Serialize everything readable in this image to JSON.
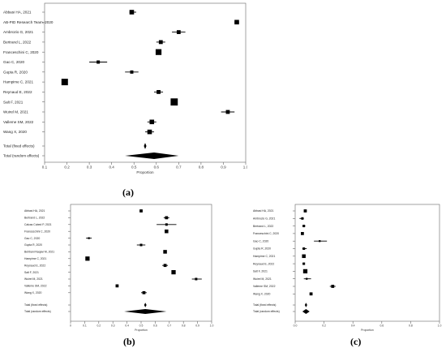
{
  "figure": {
    "panel_letters": [
      "(a)",
      "(b)",
      "(c)"
    ]
  },
  "chart_data": [
    {
      "type": "forest",
      "panel": "(a)",
      "xlabel": "Proportion",
      "xlim": [
        0.1,
        1.0
      ],
      "xticks": [
        "0.1",
        "0.2",
        "0.3",
        "0.4",
        "0.5",
        "0.6",
        "0.7",
        "0.8",
        "0.9",
        "1.0"
      ],
      "studies": [
        {
          "label": "Abbasi HA, 2021",
          "est": 0.49,
          "lo": 0.48,
          "hi": 0.51,
          "size": 7
        },
        {
          "label": "AB-PID Research Team, 2020",
          "est": 0.96,
          "lo": 0.95,
          "hi": 0.97,
          "size": 7
        },
        {
          "label": "Ambrozio G, 2021",
          "est": 0.7,
          "lo": 0.67,
          "hi": 0.73,
          "size": 6
        },
        {
          "label": "Bertrand L, 2022",
          "est": 0.62,
          "lo": 0.6,
          "hi": 0.64,
          "size": 6
        },
        {
          "label": "Franceschini C, 2020",
          "est": 0.61,
          "lo": 0.6,
          "hi": 0.62,
          "size": 9
        },
        {
          "label": "Gao C, 2020",
          "est": 0.34,
          "lo": 0.3,
          "hi": 0.38,
          "size": 5
        },
        {
          "label": "Gupta R, 2020",
          "est": 0.49,
          "lo": 0.46,
          "hi": 0.52,
          "size": 5
        },
        {
          "label": "Hampime C, 2021",
          "est": 0.19,
          "lo": 0.18,
          "hi": 0.2,
          "size": 10
        },
        {
          "label": "Reynaud E, 2022",
          "est": 0.61,
          "lo": 0.59,
          "hi": 0.63,
          "size": 6
        },
        {
          "label": "Salt F, 2021",
          "est": 0.68,
          "lo": 0.67,
          "hi": 0.69,
          "size": 11
        },
        {
          "label": "Wuirel M, 2021",
          "est": 0.92,
          "lo": 0.89,
          "hi": 0.95,
          "size": 6
        },
        {
          "label": "Valleme SM, 2022",
          "est": 0.58,
          "lo": 0.56,
          "hi": 0.6,
          "size": 7
        },
        {
          "label": "Wang X, 2020",
          "est": 0.57,
          "lo": 0.55,
          "hi": 0.59,
          "size": 7
        }
      ],
      "fixed_label": "Total (fixed effects)",
      "fixed": {
        "est": 0.55,
        "lo": 0.545,
        "hi": 0.555
      },
      "random_label": "Total (random effects)",
      "random": {
        "est": 0.59,
        "lo": 0.46,
        "hi": 0.7
      }
    },
    {
      "type": "forest",
      "panel": "(b)",
      "xlabel": "Proportion",
      "xlim": [
        0.0,
        1.0
      ],
      "xticks": [
        "0",
        "0.1",
        "0.2",
        "0.3",
        "0.4",
        "0.5",
        "0.6",
        "0.7",
        "0.8",
        "0.9",
        "1.0"
      ],
      "studies": [
        {
          "label": "Abbasi HA, 2021",
          "est": 0.5,
          "lo": 0.49,
          "hi": 0.51,
          "size": 5
        },
        {
          "label": "Bertrand L, 2022",
          "est": 0.68,
          "lo": 0.66,
          "hi": 0.7,
          "size": 5
        },
        {
          "label": "Calcas Cubed P, 2021",
          "est": 0.68,
          "lo": 0.61,
          "hi": 0.75,
          "size": 4
        },
        {
          "label": "Franceschini C, 2020",
          "est": 0.68,
          "lo": 0.67,
          "hi": 0.69,
          "size": 6
        },
        {
          "label": "Gao C, 2020",
          "est": 0.13,
          "lo": 0.11,
          "hi": 0.15,
          "size": 3
        },
        {
          "label": "Gupta R, 2020",
          "est": 0.5,
          "lo": 0.47,
          "hi": 0.53,
          "size": 4
        },
        {
          "label": "Behbani Naqavi M, 2021",
          "est": 0.67,
          "lo": 0.66,
          "hi": 0.68,
          "size": 6
        },
        {
          "label": "Hampime C, 2021",
          "est": 0.12,
          "lo": 0.11,
          "hi": 0.13,
          "size": 7
        },
        {
          "label": "Reynaud E, 2022",
          "est": 0.67,
          "lo": 0.65,
          "hi": 0.69,
          "size": 5
        },
        {
          "label": "Salt F, 2021",
          "est": 0.73,
          "lo": 0.72,
          "hi": 0.74,
          "size": 7
        },
        {
          "label": "Wuirel M, 2021",
          "est": 0.89,
          "lo": 0.86,
          "hi": 0.93,
          "size": 4
        },
        {
          "label": "Valleme SM, 2022",
          "est": 0.33,
          "lo": 0.32,
          "hi": 0.34,
          "size": 5
        },
        {
          "label": "Wang X, 2020",
          "est": 0.52,
          "lo": 0.5,
          "hi": 0.54,
          "size": 5
        }
      ],
      "fixed_label": "Total (fixed effects)",
      "fixed": {
        "est": 0.53,
        "lo": 0.525,
        "hi": 0.535
      },
      "random_label": "Total (random effects)",
      "random": {
        "est": 0.53,
        "lo": 0.38,
        "hi": 0.68
      }
    },
    {
      "type": "forest",
      "panel": "(c)",
      "xlabel": "Proportion",
      "xlim": [
        0.0,
        1.0
      ],
      "xticks": [
        "0.0",
        "0.2",
        "0.4",
        "0.6",
        "0.8",
        "1.0"
      ],
      "studies": [
        {
          "label": "Abbasi HA, 2021",
          "est": 0.07,
          "lo": 0.06,
          "hi": 0.08,
          "size": 5
        },
        {
          "label": "Ambrozio G, 2021",
          "est": 0.05,
          "lo": 0.03,
          "hi": 0.06,
          "size": 4
        },
        {
          "label": "Bertrand L, 2022",
          "est": 0.06,
          "lo": 0.05,
          "hi": 0.07,
          "size": 4
        },
        {
          "label": "Franceschini C, 2020",
          "est": 0.05,
          "lo": 0.05,
          "hi": 0.05,
          "size": 5
        },
        {
          "label": "Gao C, 2020",
          "est": 0.17,
          "lo": 0.13,
          "hi": 0.22,
          "size": 3
        },
        {
          "label": "Gupta R, 2020",
          "est": 0.06,
          "lo": 0.05,
          "hi": 0.08,
          "size": 4
        },
        {
          "label": "Hampime C, 2021",
          "est": 0.06,
          "lo": 0.06,
          "hi": 0.06,
          "size": 6
        },
        {
          "label": "Reynaud E, 2022",
          "est": 0.06,
          "lo": 0.05,
          "hi": 0.06,
          "size": 4
        },
        {
          "label": "Salt F, 2021",
          "est": 0.07,
          "lo": 0.06,
          "hi": 0.07,
          "size": 7
        },
        {
          "label": "Wuirel M, 2021",
          "est": 0.08,
          "lo": 0.06,
          "hi": 0.11,
          "size": 3
        },
        {
          "label": "Valleme SM, 2022",
          "est": 0.26,
          "lo": 0.24,
          "hi": 0.28,
          "size": 5
        },
        {
          "label": "Wang X, 2020",
          "est": 0.11,
          "lo": 0.1,
          "hi": 0.12,
          "size": 5
        }
      ],
      "fixed_label": "Total (fixed effects)",
      "fixed": {
        "est": 0.075,
        "lo": 0.074,
        "hi": 0.076
      },
      "random_label": "Total (random effects)",
      "random": {
        "est": 0.075,
        "lo": 0.05,
        "hi": 0.1
      }
    }
  ]
}
